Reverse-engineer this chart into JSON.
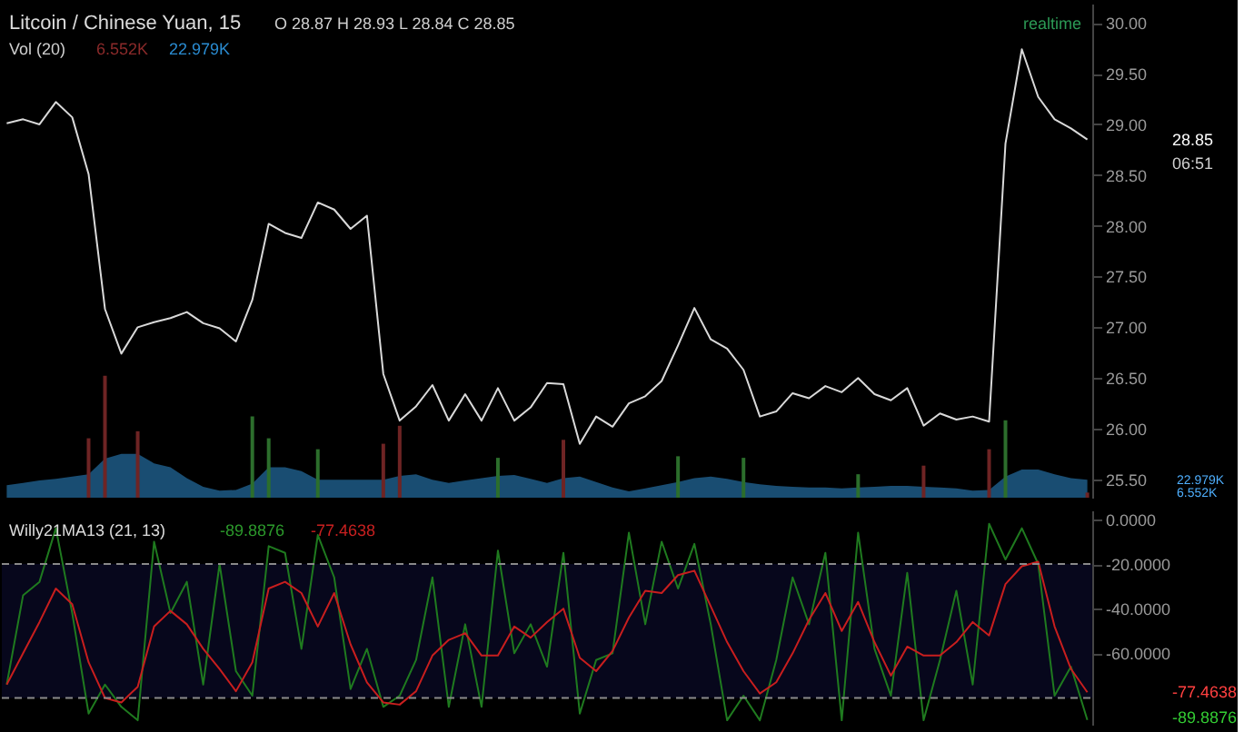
{
  "chart_data": [
    {
      "type": "line",
      "title": "Litcoin / Chinese Yuan, 15",
      "annotations": [
        "O 28.87 H 28.93 L 28.84 C 28.85",
        "Vol (20)",
        "6.552K",
        "22.979K",
        "realtime",
        "06:51",
        "28.85"
      ],
      "categories": [
        null,
        null,
        null,
        null,
        null,
        null,
        null,
        null,
        null,
        null,
        null,
        null,
        null,
        null,
        null,
        null,
        null,
        null,
        null,
        null,
        null,
        null,
        null,
        null,
        null,
        null,
        null,
        null,
        null,
        null,
        null,
        null,
        null,
        null,
        null,
        null,
        null,
        null,
        null,
        null,
        null,
        null,
        null,
        null,
        null,
        null,
        null,
        null,
        null,
        null,
        null,
        null,
        null,
        null,
        null,
        null,
        null,
        null,
        null,
        null,
        null,
        null,
        null,
        null,
        null,
        null,
        null
      ],
      "tick_labels": "y",
      "ylim": [
        25.32,
        30.19
      ],
      "yticks": [
        {
          "value": 25.5,
          "label": "25.50"
        },
        {
          "value": 26,
          "label": "26.00"
        },
        {
          "value": 26.5,
          "label": "26.50"
        },
        {
          "value": 27,
          "label": "27.00"
        },
        {
          "value": 27.5,
          "label": "27.50"
        },
        {
          "value": 28,
          "label": "28.00"
        },
        {
          "value": 28.5,
          "label": "28.50"
        },
        {
          "value": 29,
          "label": "29.00"
        },
        {
          "value": 29.5,
          "label": "29.50"
        },
        {
          "value": 30,
          "label": "30.00"
        }
      ],
      "y2lim": [
        0,
        632
      ],
      "y2ticks": [
        {
          "value": 6.552,
          "label": "6.552K"
        },
        {
          "value": 22.979,
          "label": "22.979K"
        }
      ],
      "series": [
        {
          "type": "area",
          "axis": "y2",
          "color": "#1d5b86",
          "values": [
            16,
            19,
            22,
            24,
            27,
            30,
            50,
            56,
            56,
            44,
            39,
            25,
            14,
            9,
            10,
            18,
            39,
            39,
            34,
            23,
            23,
            23,
            23,
            23,
            28,
            30,
            23,
            19,
            22,
            25,
            28,
            29,
            24,
            19,
            25,
            27,
            20,
            13,
            8,
            12,
            16,
            20,
            25,
            27,
            24,
            20,
            17,
            15,
            14,
            13,
            13,
            12,
            13,
            14,
            15,
            15,
            14,
            13,
            12,
            9,
            10,
            27,
            36,
            36,
            30,
            25,
            22.979
          ]
        },
        {
          "type": "bar",
          "axis": "y2",
          "color": "#2c6e2c",
          "values": [
            null,
            null,
            null,
            null,
            null,
            null,
            null,
            null,
            null,
            null,
            null,
            null,
            null,
            null,
            null,
            104,
            76,
            null,
            null,
            62,
            null,
            null,
            null,
            null,
            null,
            null,
            null,
            null,
            null,
            null,
            51,
            null,
            null,
            null,
            null,
            null,
            null,
            null,
            null,
            null,
            null,
            53,
            null,
            null,
            null,
            51,
            null,
            null,
            null,
            null,
            null,
            null,
            30,
            null,
            null,
            null,
            null,
            null,
            null,
            null,
            null,
            99,
            null,
            null,
            null,
            null,
            null
          ]
        },
        {
          "type": "bar",
          "axis": "y2",
          "color": "#6e2424",
          "values": [
            null,
            null,
            null,
            null,
            null,
            76,
            156,
            null,
            85,
            null,
            null,
            null,
            null,
            null,
            null,
            null,
            null,
            null,
            null,
            null,
            null,
            null,
            null,
            69,
            92,
            null,
            null,
            null,
            null,
            null,
            null,
            null,
            null,
            null,
            74,
            null,
            null,
            null,
            null,
            null,
            null,
            null,
            null,
            null,
            null,
            null,
            null,
            null,
            null,
            null,
            null,
            null,
            null,
            null,
            null,
            null,
            41,
            null,
            null,
            null,
            62,
            null,
            null,
            null,
            null,
            null,
            6.552
          ]
        },
        {
          "color": "#d9d9d9",
          "values": [
            29.01,
            29.05,
            29.0,
            29.22,
            29.07,
            28.51,
            27.18,
            26.74,
            27.0,
            27.05,
            27.09,
            27.15,
            27.04,
            26.99,
            26.86,
            27.27,
            28.02,
            27.93,
            27.88,
            28.23,
            28.16,
            27.97,
            28.1,
            26.54,
            26.08,
            26.22,
            26.43,
            26.08,
            26.34,
            26.08,
            26.4,
            26.08,
            26.21,
            26.45,
            26.44,
            25.85,
            26.12,
            26.02,
            26.25,
            26.32,
            26.47,
            26.82,
            27.19,
            26.88,
            26.79,
            26.58,
            26.12,
            26.17,
            26.35,
            26.3,
            26.42,
            26.36,
            26.5,
            26.34,
            26.28,
            26.4,
            26.03,
            26.15,
            26.09,
            26.12,
            26.07,
            28.81,
            29.74,
            29.27,
            29.05,
            28.96,
            28.85
          ]
        }
      ]
    },
    {
      "type": "line",
      "title": "Willy21MA13 (21, 13)",
      "annotations": [
        "-89.8876",
        "-77.4638",
        "-77.4638",
        "-89.8876"
      ],
      "categories": [
        null,
        null,
        null,
        null,
        null,
        null,
        null,
        null,
        null,
        null,
        null,
        null,
        null,
        null,
        null,
        null,
        null,
        null,
        null,
        null,
        null,
        null,
        null,
        null,
        null,
        null,
        null,
        null,
        null,
        null,
        null,
        null,
        null,
        null,
        null,
        null,
        null,
        null,
        null,
        null,
        null,
        null,
        null,
        null,
        null,
        null,
        null,
        null,
        null,
        null,
        null,
        null,
        null,
        null,
        null,
        null,
        null,
        null,
        null,
        null,
        null,
        null,
        null,
        null,
        null,
        null,
        null
      ],
      "tick_labels": "y",
      "ylim": [
        -92,
        4
      ],
      "yticks": [
        {
          "value": 0,
          "label": "0.0000"
        },
        {
          "value": -20,
          "label": "-20.0000"
        },
        {
          "value": -40,
          "label": "-40.0000"
        },
        {
          "value": -60,
          "label": "-60.0000"
        }
      ],
      "bands": [
        {
          "axis": "y",
          "from": -80,
          "to": -20,
          "color": "#07071c"
        }
      ],
      "ref_lines": [
        {
          "axis": "y",
          "value": -20,
          "color": "#8a8a8a",
          "line_style": "dashed"
        },
        {
          "axis": "y",
          "value": -80,
          "color": "#8a8a8a",
          "line_style": "dashed"
        }
      ],
      "series": [
        {
          "color": "#1f7a1f",
          "values": [
            -74,
            -34,
            -28,
            -4,
            -42,
            -87,
            -74,
            -84,
            -90,
            -10,
            -42,
            -28,
            -74,
            -20,
            -68,
            -79,
            -12,
            -15,
            -58,
            -7,
            -26,
            -76,
            -58,
            -84,
            -79,
            -63,
            -26,
            -84,
            -47,
            -84,
            -14,
            -60,
            -47,
            -66,
            -15,
            -87,
            -63,
            -60,
            -6,
            -47,
            -10,
            -31,
            -11,
            -47,
            -90,
            -79,
            -90,
            -63,
            -26,
            -47,
            -15,
            -90,
            -6,
            -58,
            -79,
            -24,
            -90,
            -63,
            -32,
            -74,
            -2,
            -18,
            -4,
            -20,
            -79,
            -66,
            -89.8876
          ]
        },
        {
          "color": "#c81e1e",
          "values": [
            -74,
            -60,
            -46,
            -31,
            -38,
            -64,
            -80,
            -82,
            -75,
            -48,
            -41,
            -47,
            -58,
            -67,
            -77,
            -64,
            -31,
            -28,
            -33,
            -48,
            -33,
            -56,
            -73,
            -82,
            -83,
            -77,
            -61,
            -54,
            -51,
            -61,
            -61,
            -48,
            -53,
            -46,
            -40,
            -62,
            -68,
            -59,
            -44,
            -32,
            -33,
            -25,
            -23,
            -39,
            -55,
            -68,
            -78,
            -73,
            -60,
            -45,
            -33,
            -50,
            -37,
            -55,
            -70,
            -57,
            -61,
            -61,
            -55,
            -46,
            -52,
            -29,
            -21,
            -19,
            -48,
            -67,
            -77.4638
          ]
        }
      ]
    }
  ]
}
